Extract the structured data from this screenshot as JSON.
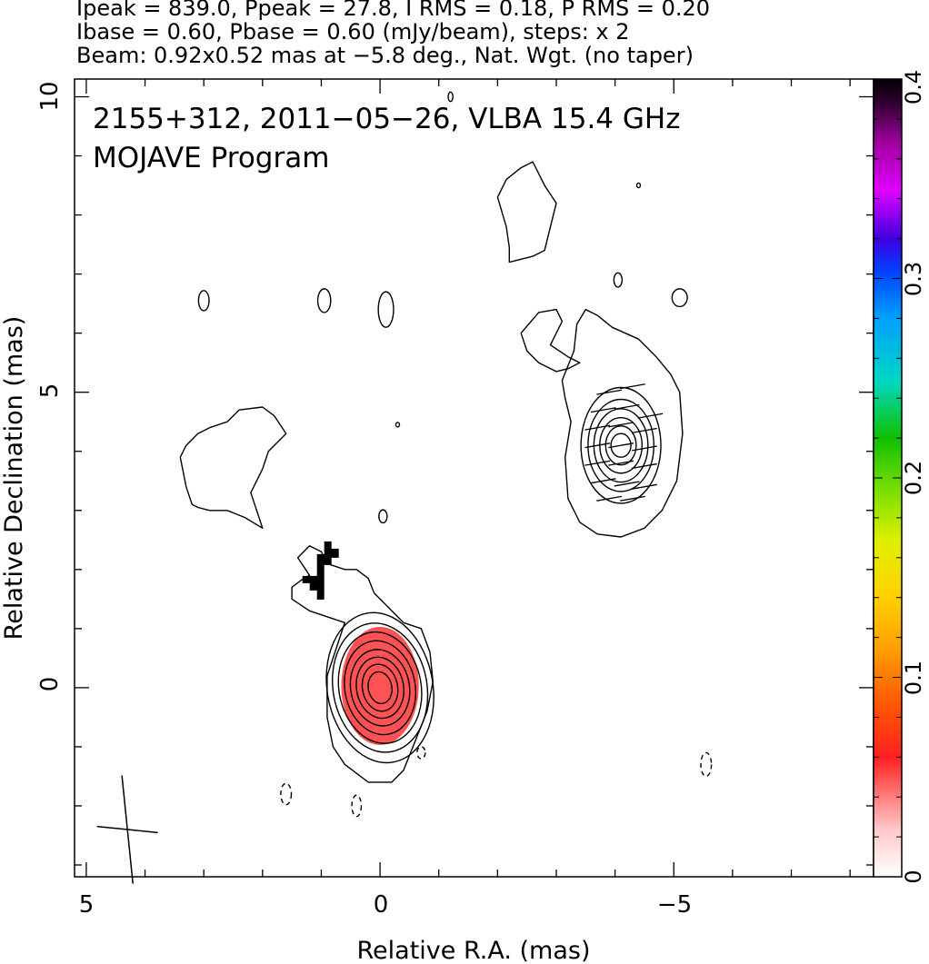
{
  "header": {
    "line1": "Ipeak = 839.0, Ppeak = 27.8, I RMS = 0.18, P RMS = 0.20",
    "line2": "Ibase = 0.60, Pbase = 0.60 (mJy/beam), steps: x 2",
    "line3": "Beam: 0.92x0.52 mas at −5.8 deg., Nat. Wgt. (no taper)"
  },
  "chart_data": {
    "type": "contour",
    "title_line1": "2155+312, 2011−05−26, VLBA 15.4 GHz",
    "title_line2": "MOJAVE Program",
    "xlabel": "Relative R.A. (mas)",
    "ylabel": "Relative Declination (mas)",
    "xlim": [
      5.2,
      -8.4
    ],
    "ylim": [
      -3.2,
      10.3
    ],
    "x_ticks": [
      {
        "value": 5,
        "label": "5"
      },
      {
        "value": 0,
        "label": "0"
      },
      {
        "value": -5,
        "label": "−5"
      }
    ],
    "y_ticks": [
      {
        "value": 0,
        "label": "0"
      },
      {
        "value": 5,
        "label": "5"
      },
      {
        "value": 10,
        "label": "10"
      }
    ],
    "colorbar": {
      "min": 0,
      "max": 0.4,
      "ticks": [
        {
          "value": 0,
          "label": "0"
        },
        {
          "value": 0.1,
          "label": "0.1"
        },
        {
          "value": 0.2,
          "label": "0.2"
        },
        {
          "value": 0.3,
          "label": "0.3"
        },
        {
          "value": 0.4,
          "label": "0.4"
        }
      ]
    },
    "components": [
      {
        "name": "core",
        "ra": 0.0,
        "dec": 0.0,
        "contour_radii": [
          [
            0.2,
            0.27
          ],
          [
            0.3,
            0.4
          ],
          [
            0.4,
            0.52
          ],
          [
            0.5,
            0.65
          ],
          [
            0.6,
            0.8
          ],
          [
            0.7,
            0.95
          ],
          [
            0.8,
            1.1
          ],
          [
            0.9,
            1.28
          ]
        ],
        "tilt_deg": -10,
        "fracpol_color": "#ff4040"
      },
      {
        "name": "jet-knot",
        "ra": -4.1,
        "dec": 4.1,
        "contour_radii": [
          [
            0.17,
            0.2
          ],
          [
            0.26,
            0.33
          ],
          [
            0.36,
            0.47
          ],
          [
            0.46,
            0.62
          ],
          [
            0.56,
            0.78
          ],
          [
            0.68,
            0.98
          ]
        ],
        "tilt_deg": 0
      }
    ],
    "evpa_vectors": {
      "component": "jet-knot",
      "angle_deg": 80,
      "points": [
        [
          -4.3,
          5.1
        ],
        [
          -3.9,
          5.0
        ],
        [
          -3.8,
          4.7
        ],
        [
          -4.2,
          4.75
        ],
        [
          -4.6,
          4.6
        ],
        [
          -3.7,
          4.4
        ],
        [
          -4.1,
          4.45
        ],
        [
          -4.5,
          4.35
        ],
        [
          -3.7,
          4.1
        ],
        [
          -4.1,
          4.1
        ],
        [
          -4.5,
          4.05
        ],
        [
          -3.7,
          3.8
        ],
        [
          -4.1,
          3.8
        ],
        [
          -4.5,
          3.75
        ],
        [
          -3.8,
          3.5
        ],
        [
          -4.2,
          3.45
        ],
        [
          -4.5,
          3.4
        ],
        [
          -3.9,
          3.2
        ],
        [
          -4.3,
          3.2
        ]
      ]
    },
    "extended_contours": [
      [
        [
          2.0,
          2.7
        ],
        [
          2.3,
          2.88
        ],
        [
          2.6,
          3.0
        ],
        [
          2.9,
          3.0
        ],
        [
          3.1,
          3.05
        ],
        [
          3.2,
          3.1
        ],
        [
          3.3,
          3.4
        ],
        [
          3.4,
          3.9
        ],
        [
          3.3,
          4.1
        ],
        [
          3.1,
          4.3
        ],
        [
          2.9,
          4.4
        ],
        [
          2.6,
          4.5
        ],
        [
          2.4,
          4.7
        ],
        [
          2.0,
          4.75
        ],
        [
          1.8,
          4.6
        ],
        [
          1.6,
          4.3
        ],
        [
          1.9,
          4.0
        ],
        [
          2.0,
          3.7
        ],
        [
          2.2,
          3.3
        ],
        [
          2.1,
          3.0
        ],
        [
          2.0,
          2.7
        ]
      ],
      [
        [
          1.2,
          1.9
        ],
        [
          1.4,
          2.2
        ],
        [
          1.2,
          2.4
        ],
        [
          1.0,
          2.3
        ],
        [
          0.9,
          2.1
        ],
        [
          0.6,
          2.0
        ],
        [
          0.4,
          2.0
        ],
        [
          0.2,
          1.85
        ],
        [
          0.1,
          1.6
        ],
        [
          -0.1,
          1.4
        ],
        [
          -0.2,
          1.3
        ],
        [
          -0.4,
          1.1
        ],
        [
          -0.7,
          1.0
        ],
        [
          -0.85,
          0.6
        ],
        [
          -0.9,
          0.1
        ],
        [
          -0.8,
          -0.4
        ],
        [
          -0.6,
          -0.9
        ],
        [
          -0.4,
          -1.4
        ],
        [
          -0.2,
          -1.6
        ],
        [
          0.2,
          -1.6
        ],
        [
          0.6,
          -1.3
        ],
        [
          0.8,
          -1.0
        ],
        [
          0.9,
          -0.5
        ],
        [
          0.9,
          0.2
        ],
        [
          0.7,
          0.8
        ],
        [
          0.6,
          1.1
        ],
        [
          0.9,
          1.2
        ],
        [
          1.2,
          1.3
        ],
        [
          1.5,
          1.5
        ],
        [
          1.5,
          1.7
        ],
        [
          1.3,
          1.85
        ],
        [
          1.2,
          1.9
        ]
      ],
      [
        [
          -3.1,
          5.2
        ],
        [
          -3.3,
          5.7
        ],
        [
          -3.35,
          6.15
        ],
        [
          -3.5,
          6.4
        ],
        [
          -3.7,
          6.3
        ],
        [
          -3.95,
          6.1
        ],
        [
          -4.4,
          5.9
        ],
        [
          -4.7,
          5.6
        ],
        [
          -4.95,
          5.3
        ],
        [
          -5.1,
          5.0
        ],
        [
          -5.15,
          4.3
        ],
        [
          -5.05,
          3.5
        ],
        [
          -4.8,
          3.0
        ],
        [
          -4.5,
          2.7
        ],
        [
          -4.1,
          2.55
        ],
        [
          -3.7,
          2.6
        ],
        [
          -3.4,
          2.8
        ],
        [
          -3.2,
          3.2
        ],
        [
          -3.15,
          3.9
        ],
        [
          -3.25,
          4.5
        ],
        [
          -3.15,
          4.9
        ],
        [
          -3.1,
          5.2
        ]
      ],
      [
        [
          -2.2,
          7.2
        ],
        [
          -2.6,
          7.3
        ],
        [
          -2.8,
          7.4
        ],
        [
          -2.9,
          7.8
        ],
        [
          -3.0,
          8.2
        ],
        [
          -2.8,
          8.5
        ],
        [
          -2.6,
          8.9
        ],
        [
          -2.4,
          8.8
        ],
        [
          -2.15,
          8.6
        ],
        [
          -2.0,
          8.3
        ],
        [
          -2.15,
          7.8
        ],
        [
          -2.2,
          7.45
        ],
        [
          -2.2,
          7.2
        ]
      ],
      [
        [
          -2.9,
          5.8
        ],
        [
          -3.2,
          5.6
        ],
        [
          -3.4,
          5.5
        ],
        [
          -3.2,
          5.4
        ],
        [
          -3.0,
          5.35
        ],
        [
          -2.7,
          5.5
        ],
        [
          -2.5,
          5.7
        ],
        [
          -2.4,
          6.0
        ],
        [
          -2.7,
          6.35
        ],
        [
          -3.0,
          6.4
        ],
        [
          -3.1,
          6.2
        ],
        [
          -2.9,
          5.8
        ]
      ]
    ],
    "small_contours": [
      {
        "ra": 3.0,
        "dec": 6.55,
        "rx": 0.09,
        "ry": 0.17
      },
      {
        "ra": 0.95,
        "dec": 6.55,
        "rx": 0.11,
        "ry": 0.2
      },
      {
        "ra": -0.1,
        "dec": 6.4,
        "rx": 0.13,
        "ry": 0.3
      },
      {
        "ra": -1.2,
        "dec": 10.0,
        "rx": 0.04,
        "ry": 0.08
      },
      {
        "ra": -4.4,
        "dec": 8.5,
        "rx": 0.02,
        "ry": 0.03
      },
      {
        "ra": -4.05,
        "dec": 6.9,
        "rx": 0.07,
        "ry": 0.12
      },
      {
        "ra": -5.1,
        "dec": 6.6,
        "rx": 0.13,
        "ry": 0.15
      },
      {
        "ra": -0.3,
        "dec": 4.45,
        "rx": 0.02,
        "ry": 0.03
      },
      {
        "ra": -0.05,
        "dec": 2.9,
        "rx": 0.07,
        "ry": 0.11
      }
    ],
    "negative_contours": [
      {
        "ra": -0.7,
        "dec": -1.1,
        "rx": 0.07,
        "ry": 0.1
      },
      {
        "ra": 0.4,
        "dec": -2.0,
        "rx": 0.08,
        "ry": 0.18
      },
      {
        "ra": 1.6,
        "dec": -1.8,
        "rx": 0.09,
        "ry": 0.18
      },
      {
        "ra": -5.55,
        "dec": -1.3,
        "rx": 0.09,
        "ry": 0.2
      }
    ],
    "polarization_blob": {
      "ra": 0.95,
      "dec": 1.8,
      "color": "#000000"
    },
    "beam": {
      "ra": 4.3,
      "dec": -2.4,
      "major": 0.92,
      "minor": 0.52,
      "pa_deg": -5.8
    }
  }
}
